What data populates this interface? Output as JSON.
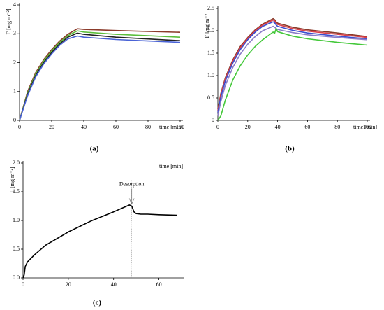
{
  "chart_data": [
    {
      "type": "line",
      "panel_label": "(a)",
      "xlabel": "time [min]",
      "ylabel": "Γ [mg m⁻²]",
      "xlim": [
        0,
        100
      ],
      "ylim": [
        0,
        4
      ],
      "xticks": [
        0,
        20,
        40,
        60,
        80,
        100
      ],
      "yticks": [
        0,
        1,
        2,
        3,
        4
      ],
      "x": [
        0,
        5,
        10,
        15,
        20,
        25,
        30,
        36,
        40,
        60,
        80,
        100
      ],
      "series": [
        {
          "name": "brown",
          "color": "#8b3a2a",
          "values": [
            0,
            1.0,
            1.65,
            2.1,
            2.45,
            2.75,
            2.98,
            3.17,
            3.15,
            3.11,
            3.08,
            3.05
          ]
        },
        {
          "name": "green",
          "color": "#5cbf3c",
          "values": [
            0,
            0.95,
            1.6,
            2.05,
            2.4,
            2.7,
            2.93,
            3.1,
            3.06,
            2.98,
            2.93,
            2.88
          ]
        },
        {
          "name": "black",
          "color": "#222222",
          "values": [
            0,
            0.9,
            1.55,
            2.0,
            2.35,
            2.65,
            2.88,
            3.02,
            2.98,
            2.88,
            2.82,
            2.76
          ]
        },
        {
          "name": "blue",
          "color": "#4a63d6",
          "values": [
            0,
            0.85,
            1.5,
            1.95,
            2.3,
            2.6,
            2.82,
            2.92,
            2.88,
            2.8,
            2.75,
            2.7
          ]
        }
      ]
    },
    {
      "type": "line",
      "panel_label": "(b)",
      "xlabel": "time [min]",
      "ylabel": "Γ [mg m⁻²]",
      "xlim": [
        0,
        100
      ],
      "ylim": [
        0,
        2.5
      ],
      "xticks": [
        0,
        20,
        40,
        60,
        80,
        100
      ],
      "yticks": [
        0,
        0.5,
        {
          "value": 1,
          "label": "1.0"
        },
        1.5,
        {
          "value": 2,
          "label": "2.0"
        },
        2.5
      ],
      "x": [
        0,
        2,
        5,
        10,
        15,
        20,
        25,
        30,
        37,
        38,
        39,
        40,
        50,
        60,
        80,
        100
      ],
      "series": [
        {
          "name": "brown",
          "color": "#8b3a2a",
          "values": [
            0.25,
            0.6,
            0.95,
            1.35,
            1.65,
            1.85,
            2.02,
            2.15,
            2.27,
            2.25,
            2.2,
            2.17,
            2.08,
            2.02,
            1.95,
            1.87
          ]
        },
        {
          "name": "red",
          "color": "#d8404a",
          "values": [
            0.22,
            0.57,
            0.92,
            1.32,
            1.62,
            1.83,
            2.0,
            2.13,
            2.24,
            2.22,
            2.17,
            2.14,
            2.05,
            1.99,
            1.92,
            1.85
          ]
        },
        {
          "name": "blue",
          "color": "#3b4ed0",
          "values": [
            0.18,
            0.52,
            0.88,
            1.28,
            1.58,
            1.8,
            1.97,
            2.1,
            2.2,
            2.18,
            2.13,
            2.1,
            2.01,
            1.95,
            1.88,
            1.82
          ]
        },
        {
          "name": "lavender",
          "color": "#8a7cc8",
          "values": [
            0.1,
            0.42,
            0.78,
            1.18,
            1.48,
            1.7,
            1.87,
            2.0,
            2.1,
            2.08,
            2.05,
            2.03,
            1.96,
            1.91,
            1.85,
            1.8
          ]
        },
        {
          "name": "green",
          "color": "#44c83a",
          "values": [
            0,
            0.1,
            0.45,
            0.9,
            1.22,
            1.46,
            1.65,
            1.8,
            1.97,
            1.94,
            2.05,
            1.98,
            1.88,
            1.82,
            1.74,
            1.68
          ]
        }
      ]
    },
    {
      "type": "line",
      "panel_label": "(c)",
      "xlabel": "time [min]",
      "ylabel": "Γ [mg m⁻²]",
      "xlim": [
        0,
        70
      ],
      "ylim": [
        0,
        2
      ],
      "xticks": [
        0,
        20,
        40,
        60
      ],
      "yticks": [
        {
          "value": 0,
          "label": "0.0"
        },
        0.5,
        {
          "value": 1,
          "label": "1.0"
        },
        1.5,
        {
          "value": 2,
          "label": "2.0"
        }
      ],
      "x": [
        0,
        0.5,
        1,
        2,
        3,
        5,
        10,
        20,
        30,
        40,
        47,
        48,
        49,
        50,
        52,
        55,
        60,
        68
      ],
      "series": [
        {
          "name": "black",
          "color": "#000000",
          "values": [
            0,
            0.05,
            0.2,
            0.28,
            0.32,
            0.4,
            0.57,
            0.8,
            0.99,
            1.15,
            1.27,
            1.25,
            1.15,
            1.12,
            1.11,
            1.11,
            1.1,
            1.09
          ]
        }
      ],
      "annotation": {
        "text": "Desorption",
        "x": 48
      }
    }
  ]
}
